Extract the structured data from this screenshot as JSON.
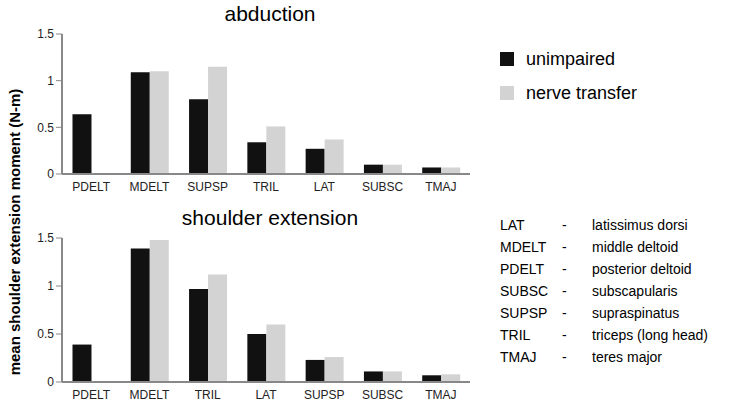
{
  "chart_data": [
    {
      "type": "bar",
      "title": "abduction",
      "categories": [
        "PDELT",
        "MDELT",
        "SUPSP",
        "TRIL",
        "LAT",
        "SUBSC",
        "TMAJ"
      ],
      "series": [
        {
          "name": "unimpaired",
          "color": "#111111",
          "values": [
            0.64,
            1.09,
            0.8,
            0.34,
            0.27,
            0.1,
            0.07
          ]
        },
        {
          "name": "nerve transfer",
          "color": "#d3d3d3",
          "values": [
            0,
            1.1,
            1.15,
            0.51,
            0.37,
            0.1,
            0.07
          ]
        }
      ],
      "ylim": [
        0,
        1.5
      ],
      "yticks": [
        0,
        0.5,
        1,
        1.5
      ],
      "grid": false
    },
    {
      "type": "bar",
      "title": "shoulder extension",
      "categories": [
        "PDELT",
        "MDELT",
        "TRIL",
        "LAT",
        "SUPSP",
        "SUBSC",
        "TMAJ"
      ],
      "series": [
        {
          "name": "unimpaired",
          "color": "#111111",
          "values": [
            0.39,
            1.39,
            0.97,
            0.5,
            0.23,
            0.11,
            0.07
          ]
        },
        {
          "name": "nerve transfer",
          "color": "#d3d3d3",
          "values": [
            0,
            1.48,
            1.12,
            0.6,
            0.26,
            0.11,
            0.08
          ]
        }
      ],
      "ylim": [
        0,
        1.5
      ],
      "yticks": [
        0,
        0.5,
        1,
        1.5
      ],
      "grid": false
    }
  ],
  "y_label": "mean shoulder extension moment (N-m)",
  "legend": "right",
  "abbreviations": [
    {
      "abbr": "LAT",
      "name": "latissimus dorsi"
    },
    {
      "abbr": "MDELT",
      "name": "middle deltoid"
    },
    {
      "abbr": "PDELT",
      "name": "posterior deltoid"
    },
    {
      "abbr": "SUBSC",
      "name": "subscapularis"
    },
    {
      "abbr": "SUPSP",
      "name": "supraspinatus"
    },
    {
      "abbr": "TRIL",
      "name": "triceps (long head)"
    },
    {
      "abbr": "TMAJ",
      "name": "teres major"
    }
  ]
}
